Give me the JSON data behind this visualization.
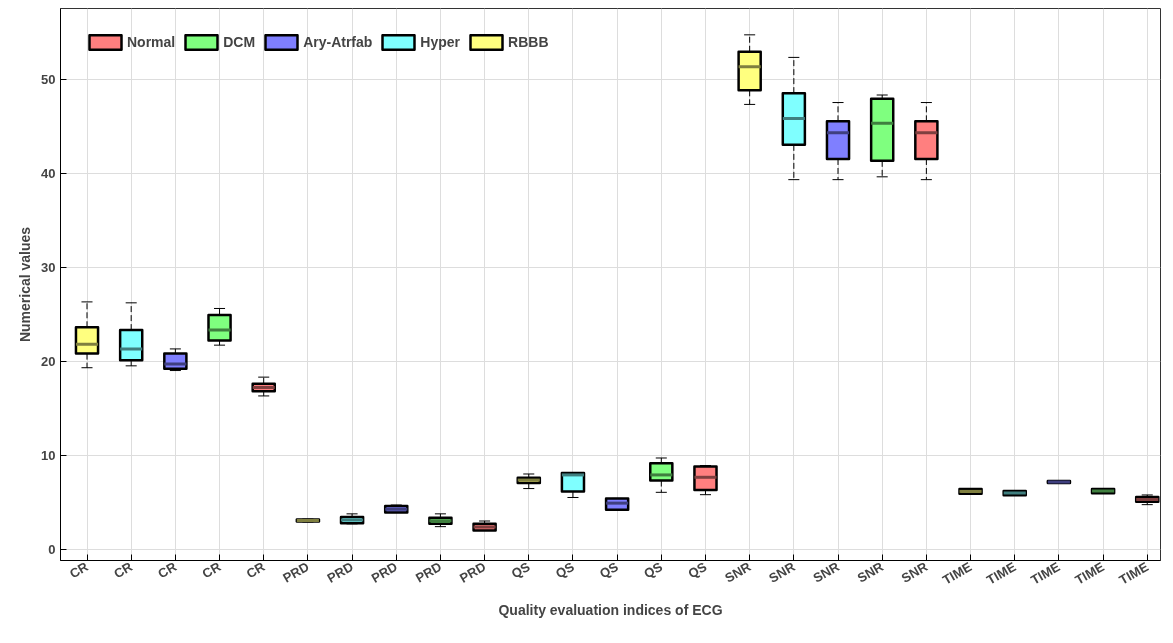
{
  "chart_data": {
    "type": "box",
    "xlabel": "Quality evaluation indices of ECG",
    "ylabel": "Numerical values",
    "categories": [
      "CR",
      "CR",
      "CR",
      "CR",
      "CR",
      "PRD",
      "PRD",
      "PRD",
      "PRD",
      "PRD",
      "QS",
      "QS",
      "QS",
      "QS",
      "QS",
      "SNR",
      "SNR",
      "SNR",
      "SNR",
      "SNR",
      "TIME",
      "TIME",
      "TIME",
      "TIME",
      "TIME"
    ],
    "ylim": [
      -1.2,
      57.5
    ],
    "yticks": [
      0,
      10,
      20,
      30,
      40,
      50
    ],
    "grid": true,
    "legend": "top left",
    "line_style": "dashed",
    "series": [
      {
        "name": "Normal",
        "color": "#ff7f7f",
        "boxes": [
          null,
          null,
          null,
          null,
          {
            "low": 16.3,
            "q1": 16.8,
            "median": 17.2,
            "q3": 17.6,
            "high": 18.3
          },
          null,
          null,
          null,
          null,
          {
            "low": 2.0,
            "q1": 2.0,
            "median": 2.35,
            "q3": 2.7,
            "high": 3.0
          },
          null,
          null,
          null,
          null,
          {
            "low": 5.8,
            "q1": 6.3,
            "median": 7.65,
            "q3": 8.8,
            "high": 8.9
          },
          null,
          null,
          null,
          null,
          {
            "low": 39.3,
            "q1": 41.5,
            "median": 44.3,
            "q3": 45.5,
            "high": 47.5
          },
          null,
          null,
          null,
          null,
          {
            "low": 4.74,
            "q1": 5.05,
            "median": 5.3,
            "q3": 5.56,
            "high": 5.77
          }
        ]
      },
      {
        "name": "DCM",
        "color": "#7fff7f",
        "boxes": [
          null,
          null,
          null,
          {
            "low": 21.7,
            "q1": 22.2,
            "median": 23.3,
            "q3": 24.9,
            "high": 25.6
          },
          null,
          null,
          null,
          null,
          {
            "low": 2.4,
            "q1": 2.7,
            "median": 3.04,
            "q3": 3.35,
            "high": 3.76
          },
          null,
          null,
          null,
          null,
          {
            "low": 6.05,
            "q1": 7.3,
            "median": 7.9,
            "q3": 9.15,
            "high": 9.7
          },
          null,
          null,
          null,
          null,
          {
            "low": 39.6,
            "q1": 41.3,
            "median": 45.3,
            "q3": 47.9,
            "high": 48.3
          },
          null,
          null,
          null,
          null,
          {
            "low": 5.95,
            "q1": 5.95,
            "median": 6.2,
            "q3": 6.4,
            "high": 6.4
          },
          null
        ]
      },
      {
        "name": "Ary-Atrfab",
        "color": "#7f7fff",
        "boxes": [
          null,
          null,
          {
            "low": 19.0,
            "q1": 19.2,
            "median": 19.7,
            "q3": 20.8,
            "high": 21.3
          },
          null,
          null,
          null,
          null,
          {
            "low": 3.9,
            "q1": 3.9,
            "median": 4.25,
            "q3": 4.6,
            "high": 4.7
          },
          null,
          null,
          null,
          null,
          {
            "low": 4.2,
            "q1": 4.2,
            "median": 4.9,
            "q3": 5.4,
            "high": 5.4
          },
          null,
          null,
          null,
          null,
          {
            "low": 39.3,
            "q1": 41.5,
            "median": 44.3,
            "q3": 45.5,
            "high": 47.5
          },
          null,
          null,
          null,
          null,
          {
            "low": 7.05,
            "q1": 7.05,
            "median": 7.15,
            "q3": 7.25,
            "high": 7.25
          },
          null,
          null
        ]
      },
      {
        "name": "Hyper",
        "color": "#7fffff",
        "boxes": [
          null,
          {
            "low": 19.5,
            "q1": 20.1,
            "median": 21.3,
            "q3": 23.3,
            "high": 26.2
          },
          null,
          null,
          null,
          null,
          {
            "low": 2.7,
            "q1": 2.77,
            "median": 3.1,
            "q3": 3.42,
            "high": 3.76
          },
          null,
          null,
          null,
          null,
          {
            "low": 5.5,
            "q1": 6.15,
            "median": 7.9,
            "q3": 8.1,
            "high": 8.15
          },
          null,
          null,
          null,
          null,
          {
            "low": 39.3,
            "q1": 43.0,
            "median": 45.8,
            "q3": 48.5,
            "high": 52.3
          },
          null,
          null,
          null,
          null,
          {
            "low": 5.75,
            "q1": 5.75,
            "median": 5.98,
            "q3": 6.2,
            "high": 6.2
          },
          null,
          null,
          null
        ]
      },
      {
        "name": "RBBB",
        "color": "#ffff7f",
        "boxes": [
          {
            "low": 19.3,
            "q1": 20.8,
            "median": 21.8,
            "q3": 23.6,
            "high": 26.3
          },
          null,
          null,
          null,
          null,
          {
            "low": 2.9,
            "q1": 2.95,
            "median": 3.05,
            "q3": 3.15,
            "high": 3.2
          },
          null,
          null,
          null,
          null,
          {
            "low": 6.45,
            "q1": 7.05,
            "median": 7.35,
            "q3": 7.6,
            "high": 8.0
          },
          null,
          null,
          null,
          null,
          {
            "low": 47.3,
            "q1": 48.8,
            "median": 51.3,
            "q3": 52.9,
            "high": 54.7
          },
          null,
          null,
          null,
          null,
          {
            "low": 5.9,
            "q1": 5.9,
            "median": 6.15,
            "q3": 6.4,
            "high": 6.4
          },
          null,
          null,
          null,
          null
        ]
      }
    ]
  }
}
